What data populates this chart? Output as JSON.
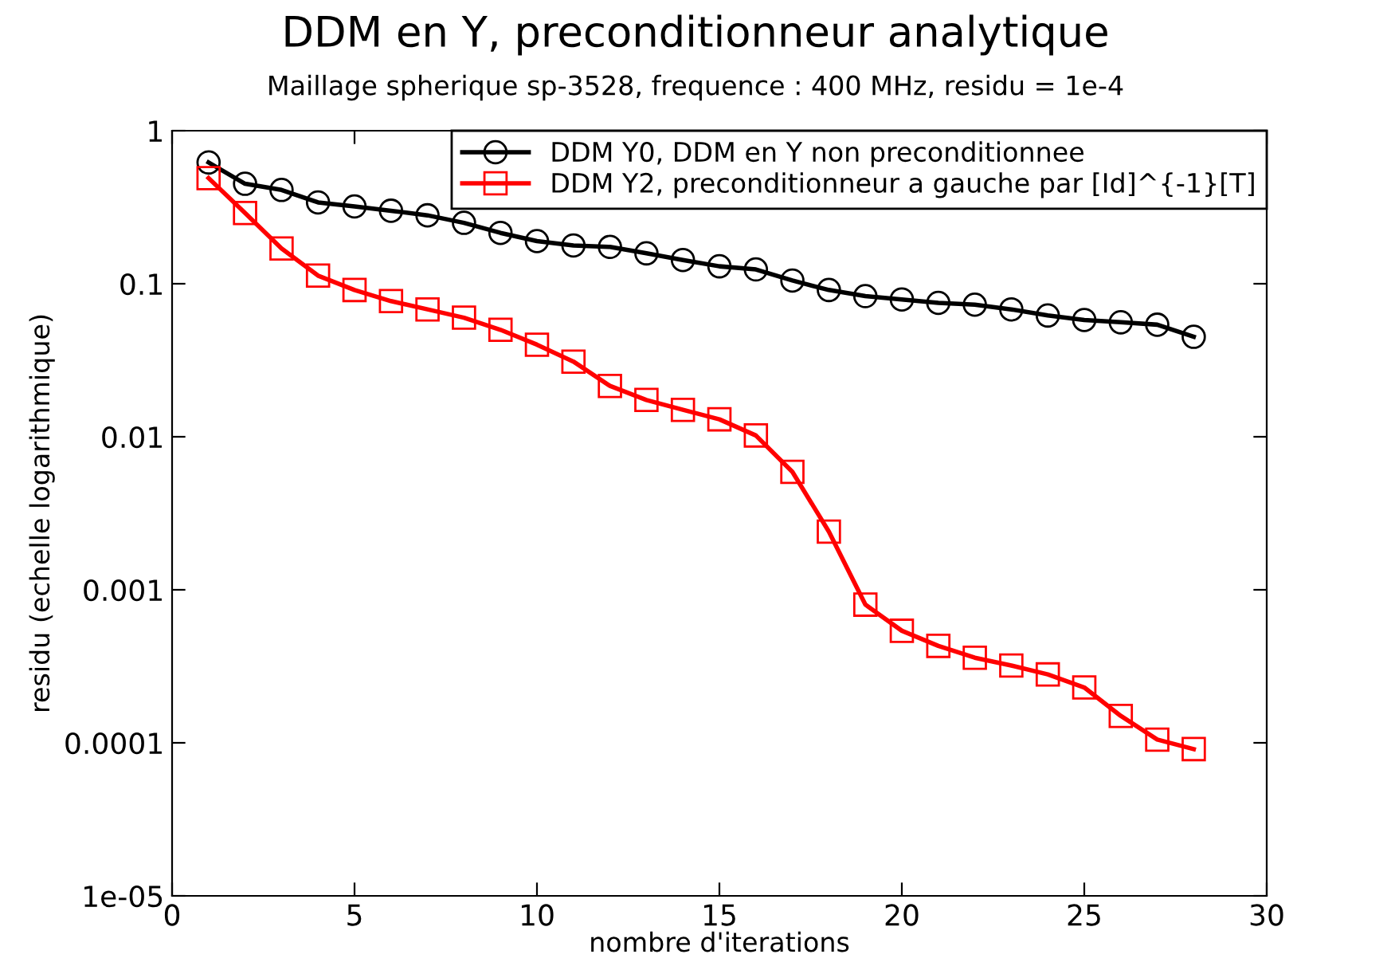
{
  "chart_data": {
    "type": "line",
    "title": "DDM en Y, preconditionneur analytique",
    "subtitle": "Maillage spherique sp-3528, frequence : 400 MHz, residu = 1e-4",
    "xlabel": "nombre d'iterations",
    "ylabel": "residu (echelle logarithmique)",
    "log": "y",
    "x": [
      1,
      2,
      3,
      4,
      5,
      6,
      7,
      8,
      9,
      10,
      11,
      12,
      13,
      14,
      15,
      16,
      17,
      18,
      19,
      20,
      21,
      22,
      23,
      24,
      25,
      26,
      27,
      28
    ],
    "series": [
      {
        "name": "DDM Y0, DDM en Y non preconditionnee",
        "color": "#000000",
        "marker": "circle",
        "values": [
          0.62,
          0.45,
          0.41,
          0.34,
          0.32,
          0.3,
          0.28,
          0.25,
          0.215,
          0.19,
          0.178,
          0.174,
          0.158,
          0.143,
          0.13,
          0.124,
          0.105,
          0.091,
          0.083,
          0.079,
          0.075,
          0.073,
          0.068,
          0.062,
          0.058,
          0.056,
          0.054,
          0.045
        ]
      },
      {
        "name": "DDM Y2, preconditionneur a gauche par [Id]^{-1}[T]",
        "color": "#ff0000",
        "marker": "square",
        "values": [
          0.49,
          0.29,
          0.17,
          0.113,
          0.091,
          0.077,
          0.068,
          0.06,
          0.05,
          0.04,
          0.031,
          0.0215,
          0.0174,
          0.015,
          0.013,
          0.0102,
          0.0059,
          0.0024,
          0.0008,
          0.00054,
          0.00043,
          0.00036,
          0.00032,
          0.00028,
          0.00023,
          0.00015,
          0.000105,
          9.1e-05
        ]
      }
    ],
    "xlim": [
      0,
      30
    ],
    "xticks": [
      0,
      5,
      10,
      15,
      20,
      25,
      30
    ],
    "ylim": [
      1e-05,
      1
    ],
    "yticks": [
      {
        "value": 1e-05,
        "label": "1e-05"
      },
      {
        "value": 0.0001,
        "label": "0.0001"
      },
      {
        "value": 0.001,
        "label": "0.001"
      },
      {
        "value": 0.01,
        "label": "0.01"
      },
      {
        "value": 0.1,
        "label": "0.1"
      },
      {
        "value": 1,
        "label": "1"
      }
    ],
    "grid": false,
    "legend": "top right",
    "line_style": "solid"
  }
}
